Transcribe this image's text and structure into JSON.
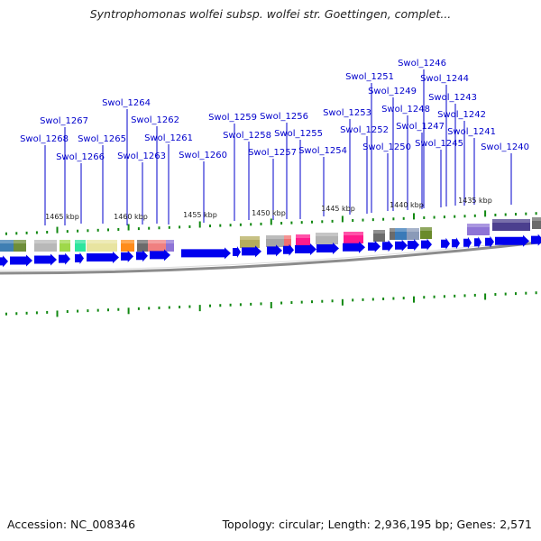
{
  "title": "Syntrophomonas wolfei subsp. wolfei str. Goettingen, complet...",
  "accession": "Accession: NC_008346",
  "summary": "Topology: circular; Length: 2,936,195 bp; Genes: 2,571",
  "colors": {
    "gene_arrow": "#0000ee",
    "leader_line": "#0000cc",
    "tick": "#118811",
    "backbone": "#8c8c8c"
  },
  "scale_labels": [
    "1465 kbp",
    "1460 kbp",
    "1455 kbp",
    "1450 kbp",
    "1445 kbp",
    "1440 kbp",
    "1435 kbp"
  ],
  "genes": [
    "Swol_1268",
    "Swol_1267",
    "Swol_1266",
    "Swol_1265",
    "Swol_1264",
    "Swol_1263",
    "Swol_1262",
    "Swol_1261",
    "Swol_1260",
    "Swol_1259",
    "Swol_1258",
    "Swol_1257",
    "Swol_1256",
    "Swol_1255",
    "Swol_1254",
    "Swol_1253",
    "Swol_1252",
    "Swol_1251",
    "Swol_1250",
    "Swol_1249",
    "Swol_1248",
    "Swol_1247",
    "Swol_1246",
    "Swol_1245",
    "Swol_1244",
    "Swol_1243",
    "Swol_1242",
    "Swol_1241",
    "Swol_1240"
  ]
}
